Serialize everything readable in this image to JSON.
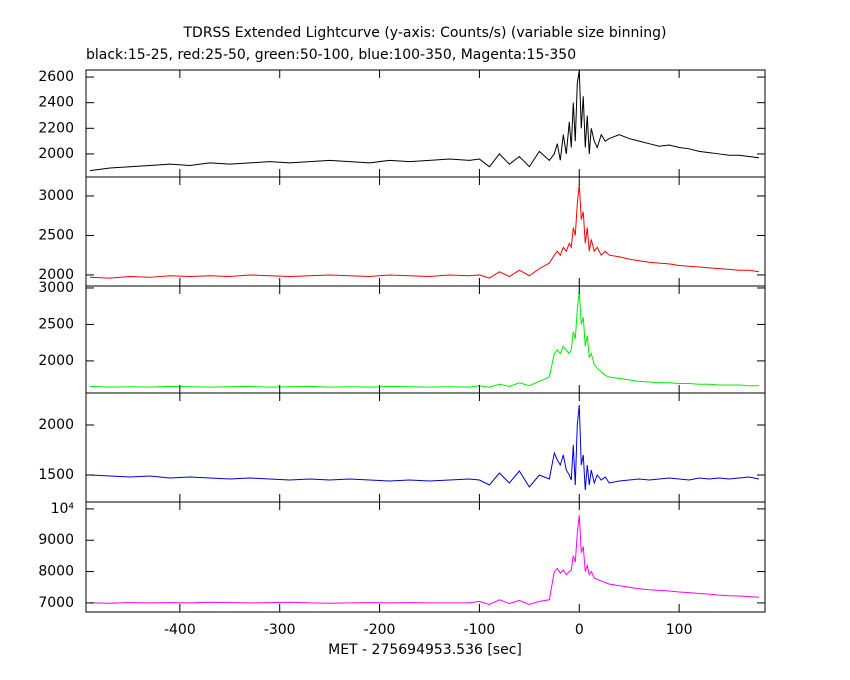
{
  "chart_data": [
    {
      "type": "line",
      "title": "TDRSS Extended Lightcurve (y-axis: Counts/s) (variable size binning)",
      "subtitle": "black:15-25, red:25-50, green:50-100, blue:100-350, Magenta:15-350",
      "color": "#000000",
      "xlim": [
        -494,
        186
      ],
      "xticks": [
        -400,
        -300,
        -200,
        -100,
        0,
        100
      ],
      "ylim": [
        1820,
        2655
      ],
      "yticks": [
        2000,
        2200,
        2400,
        2600
      ],
      "x": [
        -490,
        -470,
        -450,
        -430,
        -410,
        -390,
        -370,
        -350,
        -330,
        -310,
        -290,
        -270,
        -250,
        -230,
        -210,
        -190,
        -170,
        -150,
        -130,
        -110,
        -100,
        -90,
        -80,
        -70,
        -60,
        -50,
        -40,
        -30,
        -25,
        -22,
        -19,
        -16,
        -13,
        -10,
        -8,
        -6,
        -4,
        -2,
        0,
        2,
        4,
        6,
        8,
        10,
        12,
        15,
        18,
        22,
        26,
        30,
        40,
        50,
        60,
        70,
        80,
        90,
        100,
        110,
        120,
        130,
        140,
        150,
        160,
        170,
        180
      ],
      "values": [
        1870,
        1890,
        1900,
        1910,
        1920,
        1910,
        1930,
        1920,
        1930,
        1940,
        1930,
        1940,
        1950,
        1940,
        1930,
        1950,
        1940,
        1950,
        1960,
        1950,
        1960,
        1900,
        2000,
        1920,
        1980,
        1900,
        2020,
        1950,
        2000,
        2080,
        1950,
        2150,
        2000,
        2250,
        2050,
        2400,
        2100,
        2550,
        2650,
        2200,
        2450,
        2050,
        2300,
        2000,
        2200,
        2100,
        2050,
        2150,
        2100,
        2120,
        2150,
        2120,
        2100,
        2080,
        2060,
        2070,
        2050,
        2040,
        2020,
        2010,
        2000,
        1990,
        1990,
        1980,
        1970
      ]
    },
    {
      "type": "line",
      "color": "#ff0000",
      "xlim": [
        -494,
        186
      ],
      "xticks": [
        -400,
        -300,
        -200,
        -100,
        0,
        100
      ],
      "ylim": [
        1860,
        3240
      ],
      "yticks": [
        2000,
        2500,
        3000
      ],
      "x": [
        -490,
        -470,
        -450,
        -430,
        -410,
        -390,
        -370,
        -350,
        -330,
        -310,
        -290,
        -270,
        -250,
        -230,
        -210,
        -190,
        -170,
        -150,
        -130,
        -110,
        -100,
        -90,
        -80,
        -70,
        -60,
        -50,
        -40,
        -30,
        -25,
        -22,
        -19,
        -16,
        -13,
        -10,
        -8,
        -6,
        -4,
        -2,
        0,
        2,
        4,
        6,
        8,
        10,
        12,
        15,
        18,
        22,
        26,
        30,
        40,
        50,
        60,
        70,
        80,
        90,
        100,
        110,
        120,
        130,
        140,
        150,
        160,
        170,
        180
      ],
      "values": [
        1970,
        1960,
        1980,
        1970,
        1990,
        1980,
        1990,
        1980,
        2000,
        1990,
        1980,
        1990,
        2000,
        1990,
        1980,
        2000,
        1990,
        1980,
        2000,
        1990,
        2000,
        1960,
        2040,
        1980,
        2060,
        1990,
        2080,
        2150,
        2250,
        2300,
        2250,
        2350,
        2300,
        2400,
        2350,
        2600,
        2500,
        2900,
        3150,
        2700,
        2800,
        2400,
        2600,
        2300,
        2450,
        2300,
        2350,
        2250,
        2300,
        2250,
        2230,
        2200,
        2180,
        2160,
        2150,
        2140,
        2120,
        2110,
        2100,
        2090,
        2080,
        2070,
        2060,
        2060,
        2040
      ]
    },
    {
      "type": "line",
      "color": "#00ee00",
      "xlim": [
        -494,
        186
      ],
      "xticks": [
        -400,
        -300,
        -200,
        -100,
        0,
        100
      ],
      "ylim": [
        1560,
        3027
      ],
      "yticks": [
        2000,
        2500,
        3000
      ],
      "x": [
        -490,
        -470,
        -450,
        -430,
        -410,
        -390,
        -370,
        -350,
        -330,
        -310,
        -290,
        -270,
        -250,
        -230,
        -210,
        -190,
        -170,
        -150,
        -130,
        -110,
        -100,
        -90,
        -80,
        -70,
        -60,
        -50,
        -40,
        -30,
        -25,
        -22,
        -19,
        -16,
        -13,
        -10,
        -8,
        -6,
        -4,
        -2,
        0,
        2,
        4,
        6,
        8,
        10,
        12,
        15,
        18,
        22,
        26,
        30,
        40,
        50,
        60,
        70,
        80,
        90,
        100,
        110,
        120,
        130,
        140,
        150,
        160,
        170,
        180
      ],
      "values": [
        1650,
        1640,
        1645,
        1640,
        1650,
        1645,
        1640,
        1645,
        1650,
        1640,
        1645,
        1650,
        1640,
        1645,
        1640,
        1650,
        1645,
        1640,
        1645,
        1640,
        1660,
        1640,
        1680,
        1650,
        1700,
        1660,
        1720,
        1780,
        2100,
        2150,
        2100,
        2200,
        2150,
        2100,
        2150,
        2400,
        2300,
        2700,
        2950,
        2500,
        2600,
        2200,
        2350,
        2050,
        2100,
        1950,
        1900,
        1850,
        1800,
        1780,
        1760,
        1740,
        1720,
        1710,
        1700,
        1700,
        1690,
        1690,
        1680,
        1680,
        1670,
        1670,
        1670,
        1660,
        1660
      ]
    },
    {
      "type": "line",
      "color": "#0000dd",
      "xlim": [
        -494,
        186
      ],
      "xticks": [
        -400,
        -300,
        -200,
        -100,
        0,
        100
      ],
      "ylim": [
        1230,
        2320
      ],
      "yticks": [
        1500,
        2000
      ],
      "x": [
        -490,
        -470,
        -450,
        -430,
        -410,
        -390,
        -370,
        -350,
        -330,
        -310,
        -290,
        -270,
        -250,
        -230,
        -210,
        -190,
        -170,
        -150,
        -130,
        -110,
        -100,
        -90,
        -80,
        -70,
        -60,
        -50,
        -40,
        -30,
        -25,
        -22,
        -19,
        -16,
        -13,
        -10,
        -8,
        -6,
        -4,
        -2,
        0,
        2,
        4,
        6,
        8,
        10,
        12,
        15,
        18,
        22,
        26,
        30,
        40,
        50,
        60,
        70,
        80,
        90,
        100,
        110,
        120,
        130,
        140,
        150,
        160,
        170,
        180
      ],
      "values": [
        1500,
        1490,
        1480,
        1490,
        1470,
        1480,
        1470,
        1460,
        1470,
        1460,
        1450,
        1460,
        1450,
        1460,
        1450,
        1440,
        1450,
        1440,
        1450,
        1460,
        1450,
        1400,
        1520,
        1420,
        1540,
        1380,
        1500,
        1460,
        1720,
        1650,
        1600,
        1700,
        1550,
        1500,
        1450,
        1800,
        1400,
        2000,
        2200,
        1600,
        1700,
        1350,
        1600,
        1400,
        1550,
        1420,
        1500,
        1450,
        1480,
        1420,
        1440,
        1450,
        1460,
        1450,
        1460,
        1470,
        1460,
        1450,
        1470,
        1460,
        1470,
        1460,
        1470,
        1480,
        1460
      ]
    },
    {
      "type": "line",
      "color": "#ff00ff",
      "xlim": [
        -494,
        186
      ],
      "xticks": [
        -400,
        -300,
        -200,
        -100,
        0,
        100
      ],
      "ylim": [
        6710,
        10220
      ],
      "yticks": [
        7000,
        8000,
        9000,
        {
          "value": 10000,
          "label": "10⁴"
        }
      ],
      "xlabel": "MET - 275694953.536 [sec]",
      "x": [
        -490,
        -470,
        -450,
        -430,
        -410,
        -390,
        -370,
        -350,
        -330,
        -310,
        -290,
        -270,
        -250,
        -230,
        -210,
        -190,
        -170,
        -150,
        -130,
        -110,
        -100,
        -90,
        -80,
        -70,
        -60,
        -50,
        -40,
        -30,
        -25,
        -22,
        -19,
        -16,
        -13,
        -10,
        -8,
        -6,
        -4,
        -2,
        0,
        2,
        4,
        6,
        8,
        10,
        12,
        15,
        18,
        22,
        26,
        30,
        40,
        50,
        60,
        70,
        80,
        90,
        100,
        110,
        120,
        130,
        140,
        150,
        160,
        170,
        180
      ],
      "values": [
        7000,
        6990,
        7010,
        7000,
        7010,
        7000,
        7020,
        7010,
        7000,
        7010,
        7020,
        7000,
        6990,
        7000,
        7010,
        7000,
        7010,
        7000,
        7000,
        7000,
        7050,
        6950,
        7100,
        6980,
        7080,
        6950,
        7050,
        7100,
        8000,
        8100,
        7950,
        8050,
        7900,
        8000,
        8050,
        8500,
        8300,
        9200,
        9800,
        8600,
        8800,
        8000,
        8200,
        7900,
        8000,
        7800,
        7750,
        7700,
        7650,
        7600,
        7550,
        7500,
        7450,
        7420,
        7400,
        7380,
        7350,
        7330,
        7300,
        7280,
        7250,
        7230,
        7220,
        7200,
        7180
      ]
    }
  ]
}
